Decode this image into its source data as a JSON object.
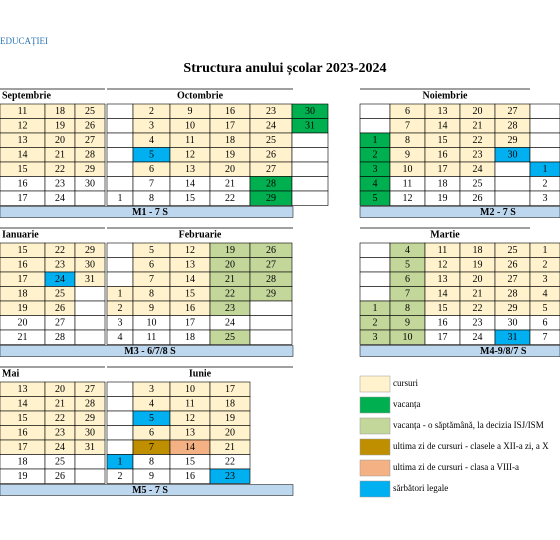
{
  "header": {
    "org": "EDUCAȚIEI",
    "title": "Structura anului școlar 2023-2024"
  },
  "blocks": [
    {
      "months": [
        {
          "name": "Septembrie",
          "cols": [
            [
              [
                11,
                "#fff2cc"
              ],
              [
                12,
                "#fff2cc"
              ],
              [
                13,
                "#fff2cc"
              ],
              [
                14,
                "#fff2cc"
              ],
              [
                15,
                "#fff2cc"
              ],
              [
                16
              ],
              [
                17
              ]
            ],
            [
              [
                18,
                "#fff2cc"
              ],
              [
                19,
                "#fff2cc"
              ],
              [
                20,
                "#fff2cc"
              ],
              [
                21,
                "#fff2cc"
              ],
              [
                22,
                "#fff2cc"
              ],
              [
                23
              ],
              [
                24
              ]
            ],
            [
              [
                25,
                "#fff2cc"
              ],
              [
                26,
                "#fff2cc"
              ],
              [
                27,
                "#fff2cc"
              ],
              [
                28,
                "#fff2cc"
              ],
              [
                29,
                "#fff2cc"
              ],
              [
                30
              ],
              null
            ]
          ]
        },
        {
          "name": "Octombrie",
          "cols": [
            [
              null,
              null,
              null,
              null,
              null,
              null,
              [
                1
              ]
            ],
            [
              [
                2,
                "#fff2cc"
              ],
              [
                3,
                "#fff2cc"
              ],
              [
                4,
                "#fff2cc"
              ],
              [
                5,
                "#00b0f0"
              ],
              [
                6,
                "#fff2cc"
              ],
              [
                7
              ],
              [
                8
              ]
            ],
            [
              [
                9,
                "#fff2cc"
              ],
              [
                10,
                "#fff2cc"
              ],
              [
                11,
                "#fff2cc"
              ],
              [
                12,
                "#fff2cc"
              ],
              [
                13,
                "#fff2cc"
              ],
              [
                14
              ],
              [
                15
              ]
            ],
            [
              [
                16,
                "#fff2cc"
              ],
              [
                17,
                "#fff2cc"
              ],
              [
                18,
                "#fff2cc"
              ],
              [
                19,
                "#fff2cc"
              ],
              [
                20,
                "#fff2cc"
              ],
              [
                21
              ],
              [
                22
              ]
            ],
            [
              [
                23,
                "#fff2cc"
              ],
              [
                24,
                "#fff2cc"
              ],
              [
                25,
                "#fff2cc"
              ],
              [
                26,
                "#fff2cc"
              ],
              [
                27,
                "#fff2cc"
              ],
              [
                28,
                "#00b050"
              ],
              [
                29,
                "#00b050"
              ]
            ],
            [
              [
                30,
                "#00b050"
              ],
              [
                31,
                "#00b050"
              ],
              null,
              null,
              null,
              null,
              null
            ]
          ]
        },
        {
          "name": "Noiembrie",
          "cols": [
            [
              null,
              null,
              [
                1,
                "#00b050"
              ],
              [
                2,
                "#00b050"
              ],
              [
                3,
                "#00b050"
              ],
              [
                4,
                "#00b050"
              ],
              [
                5,
                "#00b050"
              ]
            ],
            [
              [
                6,
                "#fff2cc"
              ],
              [
                7,
                "#fff2cc"
              ],
              [
                8,
                "#fff2cc"
              ],
              [
                9,
                "#fff2cc"
              ],
              [
                10,
                "#fff2cc"
              ],
              [
                11
              ],
              [
                12
              ]
            ],
            [
              [
                13,
                "#fff2cc"
              ],
              [
                14,
                "#fff2cc"
              ],
              [
                15,
                "#fff2cc"
              ],
              [
                16,
                "#fff2cc"
              ],
              [
                17,
                "#fff2cc"
              ],
              [
                18
              ],
              [
                19
              ]
            ],
            [
              [
                20,
                "#fff2cc"
              ],
              [
                21,
                "#fff2cc"
              ],
              [
                22,
                "#fff2cc"
              ],
              [
                23,
                "#fff2cc"
              ],
              [
                24,
                "#fff2cc"
              ],
              [
                25
              ],
              [
                26
              ]
            ],
            [
              [
                27,
                "#fff2cc"
              ],
              [
                28,
                "#fff2cc"
              ],
              [
                29,
                "#fff2cc"
              ],
              [
                30,
                "#00b0f0"
              ],
              null,
              null,
              null
            ],
            [
              null,
              null,
              null,
              null,
              [
                1,
                "#00b0f0"
              ],
              [
                2
              ],
              [
                3
              ]
            ]
          ]
        }
      ],
      "bars": [
        "M1 - 7 S",
        "M2 - 7 S"
      ]
    },
    {
      "months": [
        {
          "name": "Ianuarie",
          "cols": [
            [
              [
                15,
                "#fff2cc"
              ],
              [
                16,
                "#fff2cc"
              ],
              [
                17,
                "#fff2cc"
              ],
              [
                18,
                "#fff2cc"
              ],
              [
                19,
                "#fff2cc"
              ],
              [
                20
              ],
              [
                21
              ]
            ],
            [
              [
                22,
                "#fff2cc"
              ],
              [
                23,
                "#fff2cc"
              ],
              [
                24,
                "#00b0f0"
              ],
              [
                25,
                "#fff2cc"
              ],
              [
                26,
                "#fff2cc"
              ],
              [
                27
              ],
              [
                28
              ]
            ],
            [
              [
                29,
                "#fff2cc"
              ],
              [
                30,
                "#fff2cc"
              ],
              [
                31,
                "#fff2cc"
              ],
              null,
              null,
              null,
              null
            ]
          ]
        },
        {
          "name": "Februarie",
          "cols": [
            [
              null,
              null,
              null,
              [
                1,
                "#fff2cc"
              ],
              [
                2,
                "#fff2cc"
              ],
              [
                3
              ],
              [
                4
              ]
            ],
            [
              [
                5,
                "#fff2cc"
              ],
              [
                6,
                "#fff2cc"
              ],
              [
                7,
                "#fff2cc"
              ],
              [
                8,
                "#fff2cc"
              ],
              [
                9,
                "#fff2cc"
              ],
              [
                10
              ],
              [
                11
              ]
            ],
            [
              [
                12,
                "#fff2cc"
              ],
              [
                13,
                "#fff2cc"
              ],
              [
                14,
                "#fff2cc"
              ],
              [
                15,
                "#fff2cc"
              ],
              [
                16,
                "#fff2cc"
              ],
              [
                17
              ],
              [
                18
              ]
            ],
            [
              [
                19,
                "#c4d79b"
              ],
              [
                20,
                "#c4d79b"
              ],
              [
                21,
                "#c4d79b"
              ],
              [
                22,
                "#c4d79b"
              ],
              [
                23,
                "#c4d79b"
              ],
              [
                24
              ],
              [
                25,
                "#c4d79b"
              ]
            ],
            [
              [
                26,
                "#c4d79b"
              ],
              [
                27,
                "#c4d79b"
              ],
              [
                28,
                "#c4d79b"
              ],
              [
                29,
                "#c4d79b"
              ],
              null,
              null,
              null
            ]
          ]
        },
        {
          "name": "Martie",
          "cols": [
            [
              null,
              null,
              null,
              null,
              [
                1,
                "#c4d79b"
              ],
              [
                2,
                "#c4d79b"
              ],
              [
                3,
                "#c4d79b"
              ]
            ],
            [
              [
                4,
                "#c4d79b"
              ],
              [
                5,
                "#c4d79b"
              ],
              [
                6,
                "#c4d79b"
              ],
              [
                7,
                "#c4d79b"
              ],
              [
                8,
                "#c4d79b"
              ],
              [
                9,
                "#c4d79b"
              ],
              [
                10,
                "#c4d79b"
              ]
            ],
            [
              [
                11,
                "#fff2cc"
              ],
              [
                12,
                "#fff2cc"
              ],
              [
                13,
                "#fff2cc"
              ],
              [
                14,
                "#fff2cc"
              ],
              [
                15,
                "#fff2cc"
              ],
              [
                16
              ],
              [
                17
              ]
            ],
            [
              [
                18,
                "#fff2cc"
              ],
              [
                19,
                "#fff2cc"
              ],
              [
                20,
                "#fff2cc"
              ],
              [
                21,
                "#fff2cc"
              ],
              [
                22,
                "#fff2cc"
              ],
              [
                23
              ],
              [
                24
              ]
            ],
            [
              [
                25,
                "#fff2cc"
              ],
              [
                26,
                "#fff2cc"
              ],
              [
                27,
                "#fff2cc"
              ],
              [
                28,
                "#fff2cc"
              ],
              [
                29,
                "#fff2cc"
              ],
              [
                30
              ],
              [
                31,
                "#00b0f0"
              ]
            ],
            [
              [
                1,
                "#fff2cc"
              ],
              [
                2,
                "#fff2cc"
              ],
              [
                3,
                "#fff2cc"
              ],
              [
                4,
                "#fff2cc"
              ],
              [
                5,
                "#fff2cc"
              ],
              [
                6
              ],
              [
                7
              ]
            ]
          ]
        }
      ],
      "bars": [
        "M3 - 6/7/8 S",
        "M4-9/8/7 S"
      ]
    },
    {
      "months": [
        {
          "name": "Mai",
          "cols": [
            [
              [
                13,
                "#fff2cc"
              ],
              [
                14,
                "#fff2cc"
              ],
              [
                15,
                "#fff2cc"
              ],
              [
                16,
                "#fff2cc"
              ],
              [
                17,
                "#fff2cc"
              ],
              [
                18
              ],
              [
                19
              ]
            ],
            [
              [
                20,
                "#fff2cc"
              ],
              [
                21,
                "#fff2cc"
              ],
              [
                22,
                "#fff2cc"
              ],
              [
                23,
                "#fff2cc"
              ],
              [
                24,
                "#fff2cc"
              ],
              [
                25
              ],
              [
                26
              ]
            ],
            [
              [
                27,
                "#fff2cc"
              ],
              [
                28,
                "#fff2cc"
              ],
              [
                29,
                "#fff2cc"
              ],
              [
                30,
                "#fff2cc"
              ],
              [
                31,
                "#fff2cc"
              ],
              null,
              null
            ]
          ]
        },
        {
          "name": "Iunie",
          "cols": [
            [
              null,
              null,
              null,
              null,
              null,
              [
                1,
                "#00b0f0"
              ],
              [
                2
              ]
            ],
            [
              [
                3,
                "#fff2cc"
              ],
              [
                4,
                "#fff2cc"
              ],
              [
                5,
                "#00b0f0"
              ],
              [
                6,
                "#fff2cc"
              ],
              [
                7,
                "#bf8f00"
              ],
              [
                8
              ],
              [
                9
              ]
            ],
            [
              [
                10,
                "#fff2cc"
              ],
              [
                11,
                "#fff2cc"
              ],
              [
                12,
                "#fff2cc"
              ],
              [
                13,
                "#fff2cc"
              ],
              [
                14,
                "#f4b183"
              ],
              [
                15
              ],
              [
                16
              ]
            ],
            [
              [
                17,
                "#fff2cc"
              ],
              [
                18,
                "#fff2cc"
              ],
              [
                19,
                "#fff2cc"
              ],
              [
                20,
                "#fff2cc"
              ],
              [
                21,
                "#fff2cc"
              ],
              [
                22
              ],
              [
                23,
                "#00b0f0"
              ]
            ]
          ]
        }
      ],
      "bars": [
        "M5 - 7 S"
      ]
    }
  ],
  "legend": [
    {
      "label": "cursuri",
      "color": "#fff2cc"
    },
    {
      "label": "vacanța",
      "color": "#00b050"
    },
    {
      "label": "vacanța - o săptămână, la decizia ISJ/ISM",
      "color": "#c4d79b"
    },
    {
      "label": "ultima zi de cursuri - clasele a XII-a zi, a X",
      "color": "#bf8f00"
    },
    {
      "label": "ultima zi de cursuri - clasa a VIII-a",
      "color": "#f4b183"
    },
    {
      "label": "sărbători legale",
      "color": "#00b0f0"
    }
  ]
}
